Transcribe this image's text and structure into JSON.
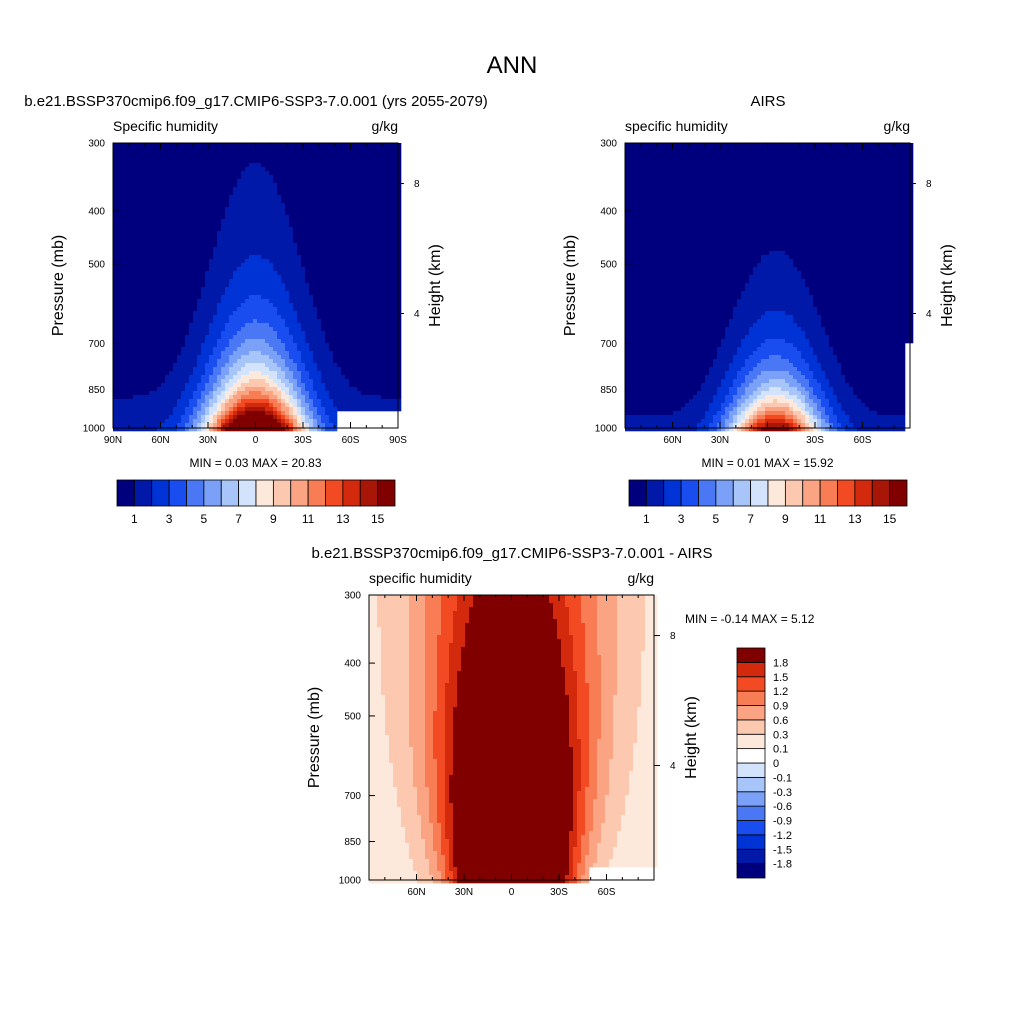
{
  "figure_title": "ANN",
  "chart_data": [
    {
      "type": "heatmap",
      "panel_title": "b.e21.BSSP370cmip6.f09_g17.CMIP6-SSP3-7.0.001 (yrs 2055-2079)",
      "left_label": "Specific humidity",
      "right_label": "g/kg",
      "ylabel": "Pressure (mb)",
      "ylabel_right": "Height (km)",
      "x_ticks": [
        "90N",
        "60N",
        "30N",
        "0",
        "30S",
        "60S",
        "90S"
      ],
      "x_values": [
        90,
        60,
        30,
        0,
        -30,
        -60,
        -90
      ],
      "xlim": [
        90,
        -90
      ],
      "y_ticks": [
        "300",
        "400",
        "500",
        "700",
        "850",
        "1000"
      ],
      "y_values": [
        300,
        400,
        500,
        700,
        850,
        1000
      ],
      "ylim": [
        1000,
        300
      ],
      "y_scale": "log",
      "height_ticks": [
        "8",
        "4"
      ],
      "height_values": [
        8,
        4
      ],
      "stats_text": "MIN =   0.03  MAX =  20.83",
      "colorbar": {
        "orientation": "horizontal",
        "levels": [
          1,
          2,
          3,
          4,
          5,
          6,
          7,
          8,
          9,
          10,
          11,
          12,
          13,
          14,
          15
        ],
        "labels": [
          "1",
          "3",
          "5",
          "7",
          "9",
          "11",
          "13",
          "15"
        ],
        "colors": [
          "#00007f",
          "#0019a8",
          "#0033d6",
          "#1a4df0",
          "#4a78f5",
          "#7aa1f7",
          "#a8c5fa",
          "#d3e3fc",
          "#fde9dc",
          "#fcc9b0",
          "#fba483",
          "#f87d55",
          "#f24a22",
          "#d32a0e",
          "#a81608",
          "#800000"
        ]
      },
      "field": {
        "peak": 20.83,
        "min": 0.03,
        "center_lat": 0,
        "width_deg": 18,
        "scale_height_mb": 220,
        "south_missing_lat": -52,
        "south_missing_top_mb": 935
      }
    },
    {
      "type": "heatmap",
      "panel_title": "AIRS",
      "left_label": "specific humidity",
      "right_label": "g/kg",
      "ylabel": "Pressure (mb)",
      "ylabel_right": "Height (km)",
      "x_ticks": [
        "60N",
        "30N",
        "0",
        "30S",
        "60S"
      ],
      "x_values": [
        60,
        30,
        0,
        -30,
        -60
      ],
      "xlim": [
        90,
        -90
      ],
      "y_ticks": [
        "300",
        "400",
        "500",
        "700",
        "850",
        "1000"
      ],
      "y_values": [
        300,
        400,
        500,
        700,
        850,
        1000
      ],
      "ylim": [
        1000,
        300
      ],
      "y_scale": "log",
      "height_ticks": [
        "8",
        "4"
      ],
      "height_values": [
        8,
        4
      ],
      "stats_text": "MIN =   0.01  MAX =  15.92",
      "colorbar": {
        "orientation": "horizontal",
        "levels": [
          1,
          2,
          3,
          4,
          5,
          6,
          7,
          8,
          9,
          10,
          11,
          12,
          13,
          14,
          15
        ],
        "labels": [
          "1",
          "3",
          "5",
          "7",
          "9",
          "11",
          "13",
          "15"
        ],
        "colors": [
          "#00007f",
          "#0019a8",
          "#0033d6",
          "#1a4df0",
          "#4a78f5",
          "#7aa1f7",
          "#a8c5fa",
          "#d3e3fc",
          "#fde9dc",
          "#fcc9b0",
          "#fba483",
          "#f87d55",
          "#f24a22",
          "#d32a0e",
          "#a81608",
          "#800000"
        ]
      },
      "field": {
        "peak": 15.92,
        "min": 0.01,
        "center_lat": -5,
        "width_deg": 17,
        "scale_height_mb": 190,
        "south_missing_lat": -86,
        "south_missing_top_mb": 700
      }
    },
    {
      "type": "heatmap",
      "panel_title": "b.e21.BSSP370cmip6.f09_g17.CMIP6-SSP3-7.0.001 - AIRS",
      "left_label": "specific humidity",
      "right_label": "g/kg",
      "ylabel": "Pressure (mb)",
      "ylabel_right": "Height (km)",
      "x_ticks": [
        "60N",
        "30N",
        "0",
        "30S",
        "60S"
      ],
      "x_values": [
        60,
        30,
        0,
        -30,
        -60
      ],
      "xlim": [
        90,
        -90
      ],
      "y_ticks": [
        "300",
        "400",
        "500",
        "700",
        "850",
        "1000"
      ],
      "y_values": [
        300,
        400,
        500,
        700,
        850,
        1000
      ],
      "ylim": [
        1000,
        300
      ],
      "y_scale": "log",
      "height_ticks": [
        "8",
        "4"
      ],
      "height_values": [
        8,
        4
      ],
      "stats_text": "MIN =  -0.14  MAX =    5.12",
      "colorbar": {
        "orientation": "vertical",
        "levels": [
          -1.8,
          -1.5,
          -1.2,
          -0.9,
          -0.6,
          -0.3,
          -0.1,
          0,
          0.1,
          0.3,
          0.6,
          0.9,
          1.2,
          1.5,
          1.8
        ],
        "labels": [
          "-1.8",
          "-1.5",
          "-1.2",
          "-0.9",
          "-0.6",
          "-0.3",
          "-0.1",
          "0",
          "0.1",
          "0.3",
          "0.6",
          "0.9",
          "1.2",
          "1.5",
          "1.8"
        ],
        "colors": [
          "#00007f",
          "#0019a8",
          "#0033d6",
          "#1a4df0",
          "#4a78f5",
          "#7aa1f7",
          "#a8c5fa",
          "#d3e3fc",
          "#ffffff",
          "#fde9dc",
          "#fcc9b0",
          "#fba483",
          "#f87d55",
          "#f24a22",
          "#d32a0e",
          "#800000"
        ]
      },
      "field": {
        "peak": 5.12,
        "min": -0.14,
        "center_lat": 0,
        "width_deg": 22,
        "scale_height_mb": 900,
        "south_missing_lat": -48,
        "south_missing_top_mb": 940
      }
    }
  ]
}
